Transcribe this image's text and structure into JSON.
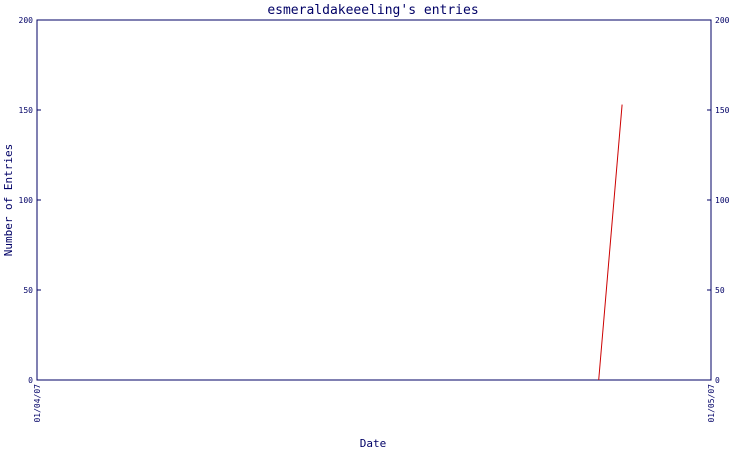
{
  "chart_data": {
    "type": "line",
    "title": "esmeraldakeeeling's entries",
    "xlabel": "Date",
    "ylabel": "Number of Entries",
    "x_tick_labels": [
      "01/04/07",
      "01/05/07"
    ],
    "y_ticks": [
      0,
      50,
      100,
      150,
      200
    ],
    "ylim": [
      0,
      200
    ],
    "xlim": [
      "2007-01-04",
      "2007-01-05"
    ],
    "grid": false,
    "legend": "none",
    "series": [
      {
        "x": [
          "2007-01-04T20:00",
          "2007-01-04T20:50"
        ],
        "values": [
          0,
          153
        ],
        "color": "#cc0000"
      }
    ]
  },
  "colors": {
    "axis": "#000066",
    "line": "#cc0000",
    "background": "#ffffff"
  }
}
